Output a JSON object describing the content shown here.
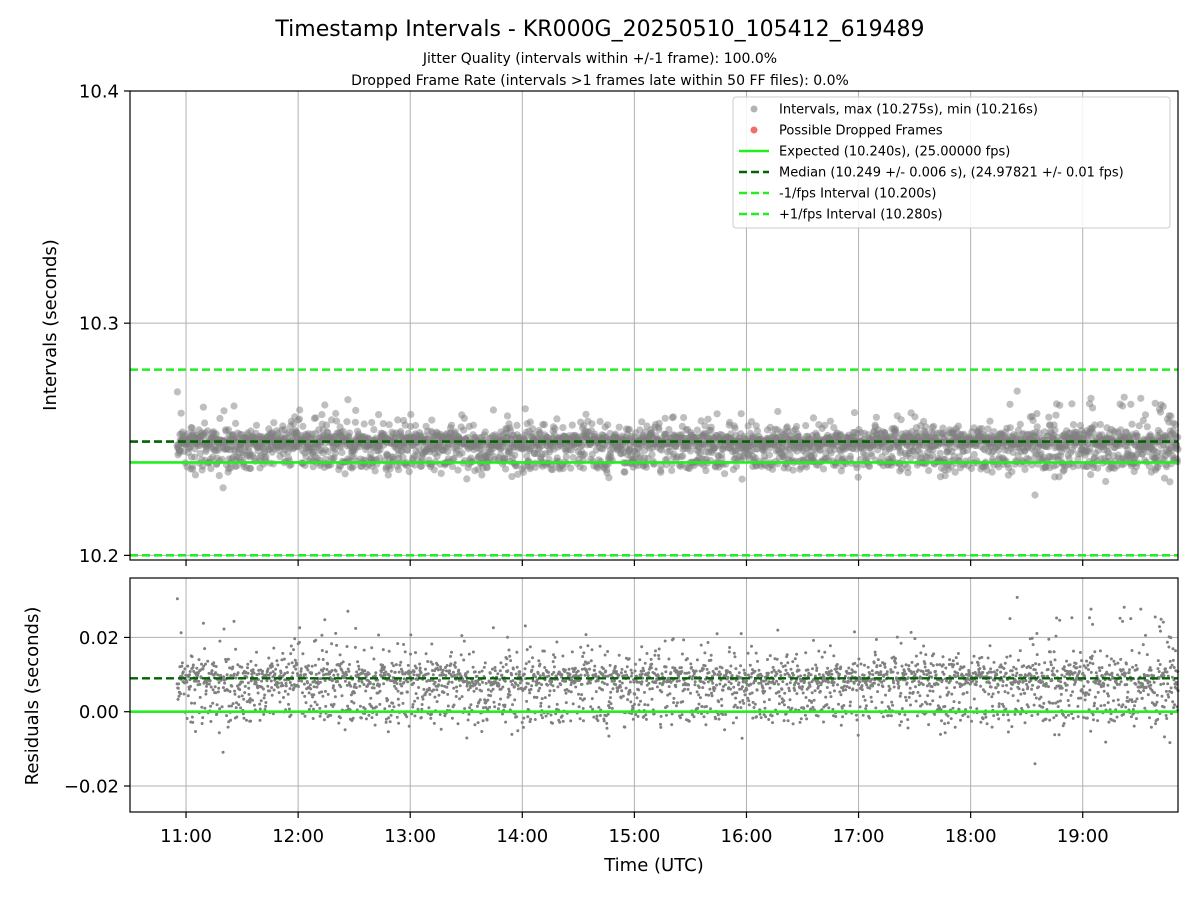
{
  "chart_data": {
    "type": "scatter",
    "title": "Timestamp Intervals - KR000G_20250510_105412_619489",
    "subtitles": [
      "Jitter Quality (intervals within +/-1 frame): 100.0%",
      "Dropped Frame Rate (intervals >1 frames late within 50 FF files): 0.0%"
    ],
    "xlabel": "Time (UTC)",
    "x_ticks": [
      "11:00",
      "12:00",
      "13:00",
      "14:00",
      "15:00",
      "16:00",
      "17:00",
      "18:00",
      "19:00"
    ],
    "x_range_hours": [
      10.5,
      19.85
    ],
    "data_range_hours": [
      10.92,
      19.85
    ],
    "grid": true,
    "panels": [
      {
        "name": "intervals",
        "ylabel": "Intervals (seconds)",
        "ylim": [
          10.198,
          10.4
        ],
        "y_ticks": [
          "10.2",
          "10.3",
          "10.4"
        ],
        "y_tick_values": [
          10.2,
          10.3,
          10.4
        ],
        "legend_position": "top-right",
        "legend": [
          "Intervals, max (10.275s), min (10.216s)",
          "Possible Dropped Frames",
          "Expected (10.240s), (25.00000 fps)",
          "Median (10.249 +/- 0.006 s), (24.97821 +/- 0.01 fps)",
          "-1/fps Interval (10.200s)",
          "+1/fps Interval (10.280s)"
        ],
        "lines": {
          "expected": 10.24,
          "median": 10.249,
          "minus_one_fps": 10.2,
          "plus_one_fps": 10.28
        },
        "scatter": {
          "approx_count": 3200,
          "median": 10.249,
          "std": 0.006,
          "max": 10.275,
          "min": 10.216
        }
      },
      {
        "name": "residuals",
        "ylabel": "Residuals (seconds)",
        "ylim": [
          -0.027,
          0.036
        ],
        "y_ticks": [
          "−0.02",
          "0.00",
          "0.02"
        ],
        "y_tick_values": [
          -0.02,
          0.0,
          0.02
        ],
        "lines": {
          "expected": 0.0,
          "median": 0.009
        }
      }
    ],
    "colors": {
      "points": "#808080",
      "dropped": "#ee5555",
      "expected": "#22ee22",
      "median": "#006400",
      "fps_interval": "#22ee22",
      "grid": "#b0b0b0"
    }
  }
}
